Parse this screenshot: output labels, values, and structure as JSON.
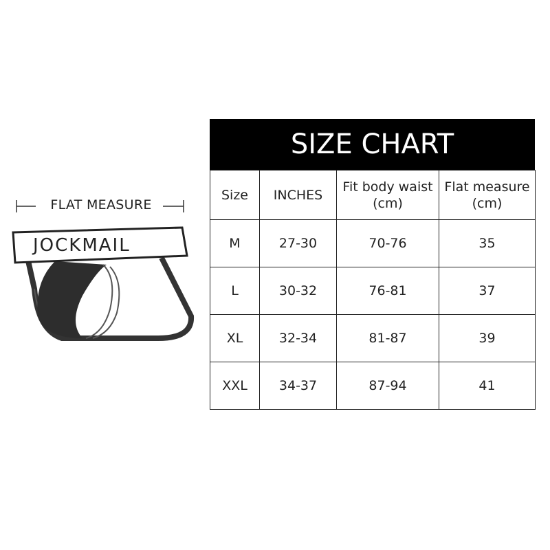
{
  "illustration": {
    "measure_label": "FLAT MEASURE",
    "brand_logo": "JOCKMAIL"
  },
  "size_chart": {
    "title": "SIZE CHART",
    "headers": [
      "Size",
      "INCHES",
      "Fit body waist\n(cm)",
      "Flat measure\n(cm)"
    ],
    "header_lines": [
      [
        "Size"
      ],
      [
        "INCHES"
      ],
      [
        "Fit body waist",
        "(cm)"
      ],
      [
        "Flat measure",
        "(cm)"
      ]
    ],
    "rows": [
      [
        "M",
        "27-30",
        "70-76",
        "35"
      ],
      [
        "L",
        "30-32",
        "76-81",
        "37"
      ],
      [
        "XL",
        "32-34",
        "81-87",
        "39"
      ],
      [
        "XXL",
        "34-37",
        "87-94",
        "41"
      ]
    ]
  }
}
